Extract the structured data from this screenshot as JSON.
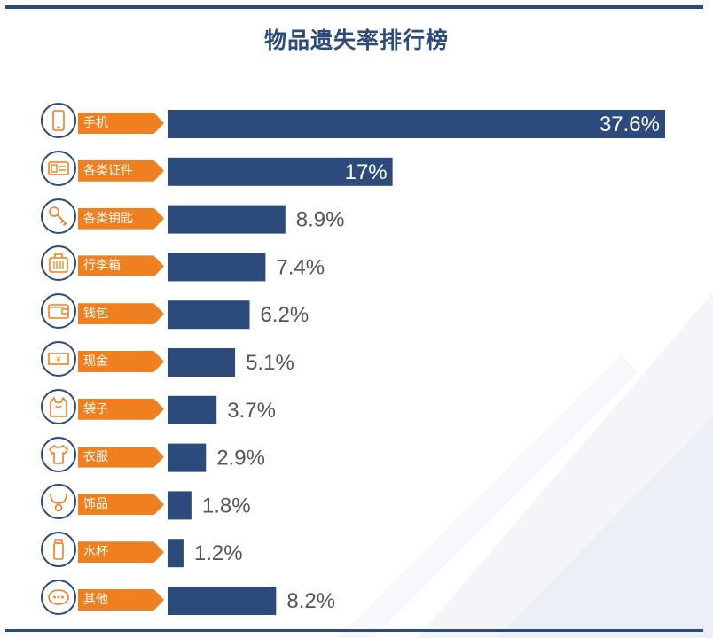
{
  "title": "物品遗失率排行榜",
  "colors": {
    "bar": "#2c4a7c",
    "accent": "#f07f1f",
    "value_outside": "#555555",
    "value_inside": "#ffffff"
  },
  "chart_data": {
    "type": "bar",
    "orientation": "horizontal",
    "title": "物品遗失率排行榜",
    "unit": "%",
    "xlim": [
      0,
      37.6
    ],
    "grid": false,
    "categories": [
      "手机",
      "各类证件",
      "各类钥匙",
      "行李箱",
      "钱包",
      "现金",
      "袋子",
      "衣服",
      "饰品",
      "水杯",
      "其他"
    ],
    "values": [
      37.6,
      17,
      8.9,
      7.4,
      6.2,
      5.1,
      3.7,
      2.9,
      1.8,
      1.2,
      8.2
    ],
    "value_labels": [
      "37.6%",
      "17%",
      "8.9%",
      "7.4%",
      "6.2%",
      "5.1%",
      "3.7%",
      "2.9%",
      "1.8%",
      "1.2%",
      "8.2%"
    ],
    "icons": [
      "phone-icon",
      "id-card-icon",
      "key-icon",
      "luggage-icon",
      "wallet-icon",
      "cash-icon",
      "bag-icon",
      "shirt-icon",
      "necklace-icon",
      "cup-icon",
      "more-icon"
    ]
  }
}
